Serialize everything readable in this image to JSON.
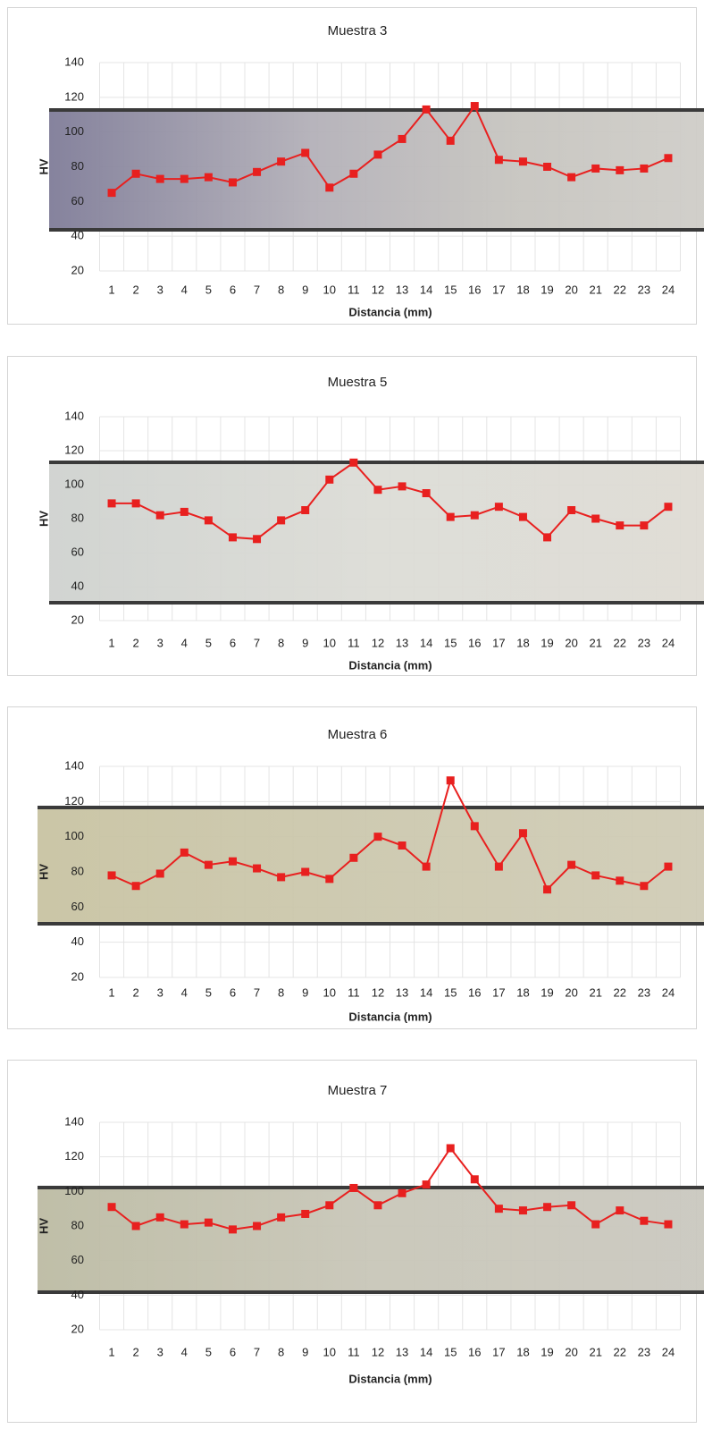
{
  "chart_data": [
    {
      "type": "line",
      "title": "Muestra 3",
      "x_label": "Distancia (mm)",
      "y_label": "HV",
      "categories": [
        "1",
        "2",
        "3",
        "4",
        "5",
        "6",
        "7",
        "8",
        "9",
        "10",
        "11",
        "12",
        "13",
        "14",
        "15",
        "16",
        "17",
        "18",
        "19",
        "20",
        "21",
        "22",
        "23",
        "24"
      ],
      "values": [
        65,
        76,
        73,
        73,
        74,
        71,
        77,
        83,
        88,
        68,
        76,
        87,
        96,
        113,
        95,
        115,
        84,
        83,
        80,
        74,
        79,
        78,
        79,
        85
      ],
      "color": "#e8201f",
      "ylim": [
        20,
        140
      ],
      "yticks": [
        20,
        40,
        60,
        80,
        100,
        120,
        140
      ],
      "grid": true
    },
    {
      "type": "line",
      "title": "Muestra 5",
      "x_label": "Distancia (mm)",
      "y_label": "HV",
      "categories": [
        "1",
        "2",
        "3",
        "4",
        "5",
        "6",
        "7",
        "8",
        "9",
        "10",
        "11",
        "12",
        "13",
        "14",
        "15",
        "16",
        "17",
        "18",
        "19",
        "20",
        "21",
        "22",
        "23",
        "24"
      ],
      "values": [
        89,
        89,
        82,
        84,
        79,
        69,
        68,
        79,
        85,
        103,
        113,
        97,
        99,
        95,
        81,
        82,
        87,
        81,
        69,
        85,
        80,
        76,
        76,
        87
      ],
      "color": "#e8201f",
      "ylim": [
        20,
        140
      ],
      "yticks": [
        20,
        40,
        60,
        80,
        100,
        120,
        140
      ],
      "grid": true
    },
    {
      "type": "line",
      "title": "Muestra 6",
      "x_label": "Distancia (mm)",
      "y_label": "HV",
      "categories": [
        "1",
        "2",
        "3",
        "4",
        "5",
        "6",
        "7",
        "8",
        "9",
        "10",
        "11",
        "12",
        "13",
        "14",
        "15",
        "16",
        "17",
        "18",
        "19",
        "20",
        "21",
        "22",
        "23",
        "24"
      ],
      "values": [
        78,
        72,
        79,
        91,
        84,
        86,
        82,
        77,
        80,
        76,
        88,
        100,
        95,
        83,
        132,
        106,
        83,
        102,
        70,
        84,
        78,
        75,
        72,
        83
      ],
      "color": "#e8201f",
      "ylim": [
        20,
        140
      ],
      "yticks": [
        20,
        40,
        60,
        80,
        100,
        120,
        140
      ],
      "grid": true
    },
    {
      "type": "line",
      "title": "Muestra 7",
      "x_label": "Distancia (mm)",
      "y_label": "HV",
      "categories": [
        "1",
        "2",
        "3",
        "4",
        "5",
        "6",
        "7",
        "8",
        "9",
        "10",
        "11",
        "12",
        "13",
        "14",
        "15",
        "16",
        "17",
        "18",
        "19",
        "20",
        "21",
        "22",
        "23",
        "24"
      ],
      "values": [
        91,
        80,
        85,
        81,
        82,
        78,
        80,
        85,
        87,
        92,
        102,
        92,
        99,
        104,
        125,
        107,
        90,
        89,
        91,
        92,
        81,
        89,
        83,
        81
      ],
      "color": "#e8201f",
      "ylim": [
        20,
        140
      ],
      "yticks": [
        20,
        40,
        60,
        80,
        100,
        120,
        140
      ],
      "grid": true
    }
  ]
}
